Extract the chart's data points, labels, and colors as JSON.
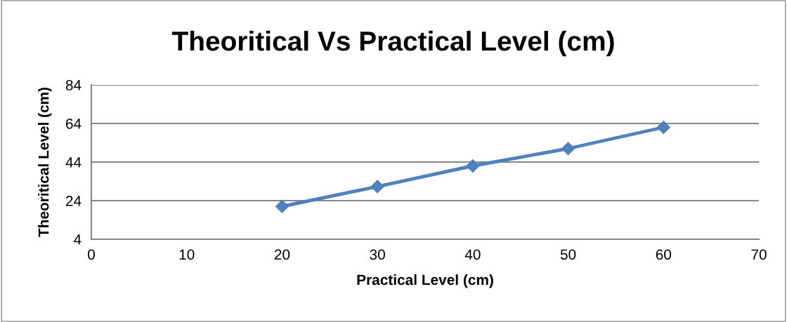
{
  "chart_data": {
    "type": "line",
    "title": "Theoritical Vs Practical Level (cm)",
    "xlabel": "Practical Level (cm)",
    "ylabel": "Theoritical Level (cm)",
    "x": [
      20,
      30,
      40,
      50,
      60
    ],
    "series": [
      {
        "color": "#4f81bd",
        "values": [
          21.0,
          31.3,
          42.0,
          51.0,
          62.0
        ]
      }
    ],
    "xlim": [
      0,
      70
    ],
    "xticks": [
      0,
      10,
      20,
      30,
      40,
      50,
      60,
      70
    ],
    "ylim": [
      4,
      84
    ],
    "yticks": [
      4,
      24,
      44,
      64,
      84
    ],
    "grid": "y",
    "marker": "diamond",
    "line_style": "solid"
  }
}
